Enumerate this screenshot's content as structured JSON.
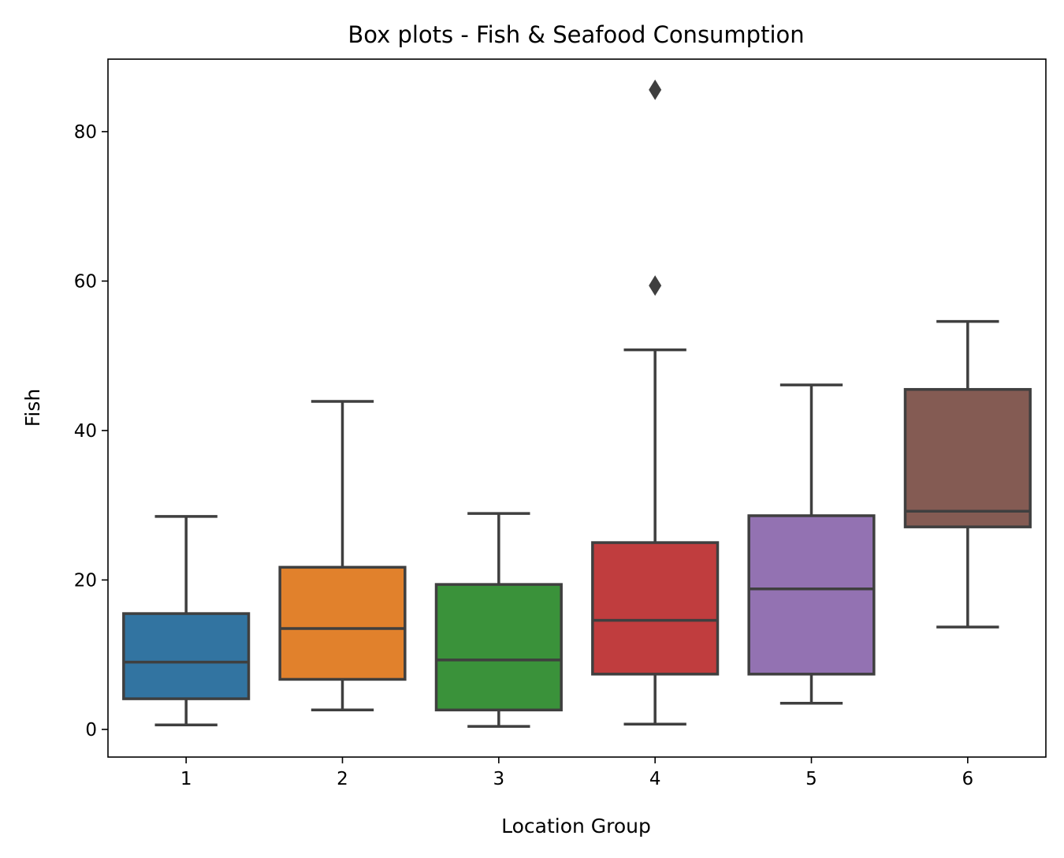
{
  "chart_data": {
    "type": "boxplot",
    "title": "Box plots - Fish & Seafood Consumption",
    "xlabel": "Location Group",
    "ylabel": "Fish",
    "categories": [
      "1",
      "2",
      "3",
      "4",
      "5",
      "6"
    ],
    "ylim": [
      -3.7,
      89.7
    ],
    "yticks": [
      0,
      20,
      40,
      60,
      80
    ],
    "grid": false,
    "boxes": [
      {
        "name": "1",
        "color": "#3274a1",
        "whisker_low": 0.6,
        "q1": 4.1,
        "median": 9.0,
        "q3": 15.5,
        "whisker_high": 28.5,
        "outliers": []
      },
      {
        "name": "2",
        "color": "#e1812c",
        "whisker_low": 2.6,
        "q1": 6.7,
        "median": 13.5,
        "q3": 21.7,
        "whisker_high": 43.9,
        "outliers": []
      },
      {
        "name": "3",
        "color": "#3a923a",
        "whisker_low": 0.4,
        "q1": 2.6,
        "median": 9.3,
        "q3": 19.4,
        "whisker_high": 28.9,
        "outliers": []
      },
      {
        "name": "4",
        "color": "#c03d3e",
        "whisker_low": 0.7,
        "q1": 7.4,
        "median": 14.6,
        "q3": 25.0,
        "whisker_high": 50.8,
        "outliers": [
          59.4,
          85.6
        ]
      },
      {
        "name": "5",
        "color": "#9372b2",
        "whisker_low": 3.5,
        "q1": 7.4,
        "median": 18.8,
        "q3": 28.6,
        "whisker_high": 46.1,
        "outliers": []
      },
      {
        "name": "6",
        "color": "#845b53",
        "whisker_low": 13.7,
        "q1": 27.1,
        "median": 29.2,
        "q3": 45.5,
        "whisker_high": 54.6,
        "outliers": []
      }
    ]
  }
}
